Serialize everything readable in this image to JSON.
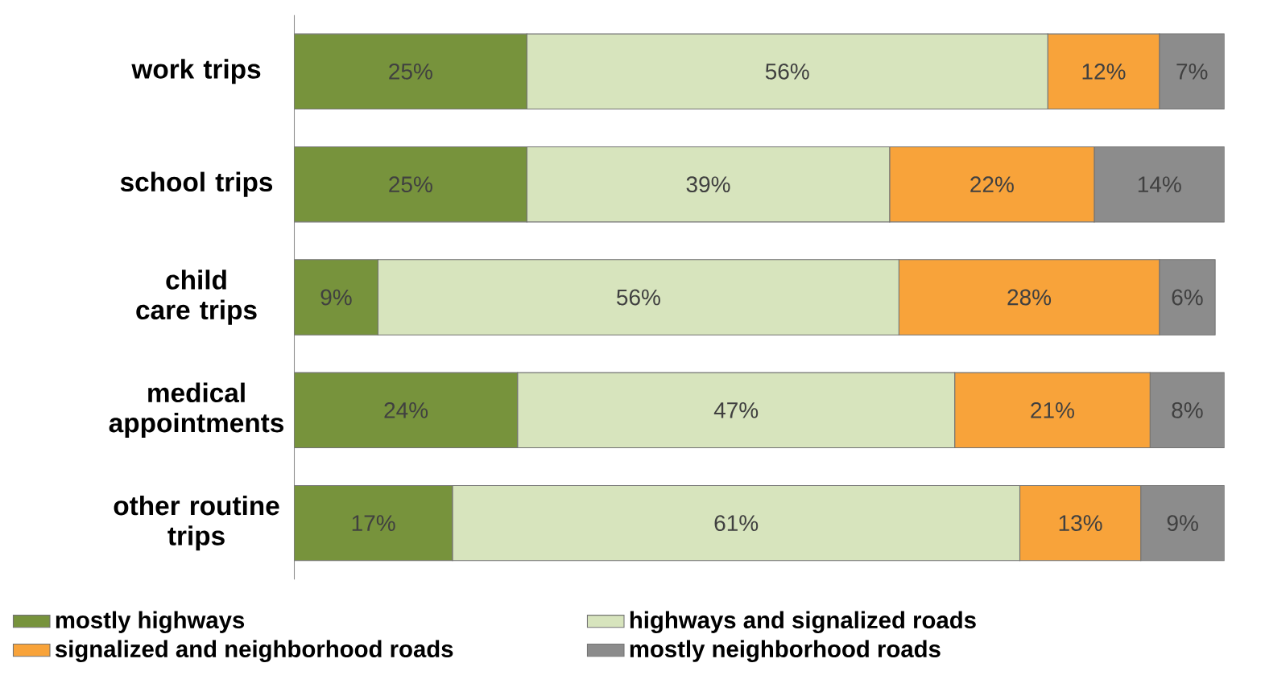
{
  "chart_data": {
    "type": "bar",
    "orientation": "horizontal",
    "stacked": true,
    "legend": "bottom",
    "categories": [
      "work trips",
      "school trips",
      "child care trips",
      "medical appointments",
      "other routine trips"
    ],
    "series": [
      {
        "name": "mostly highways",
        "color": "#77933c",
        "values": [
          25,
          25,
          9,
          24,
          17
        ],
        "value_labels": [
          "25%",
          "25%",
          "9%",
          "24%",
          "17%"
        ]
      },
      {
        "name": "highways and signalized roads",
        "color": "#d7e4bd",
        "values": [
          56,
          39,
          56,
          47,
          61
        ],
        "value_labels": [
          "56%",
          "39%",
          "56%",
          "47%",
          "61%"
        ]
      },
      {
        "name": "signalized and neighborhood roads",
        "color": "#f8a33a",
        "values": [
          12,
          22,
          28,
          21,
          13
        ],
        "value_labels": [
          "12%",
          "22%",
          "28%",
          "21%",
          "13%"
        ]
      },
      {
        "name": "mostly neighborhood roads",
        "color": "#8c8c8c",
        "values": [
          7,
          14,
          6,
          8,
          9
        ],
        "value_labels": [
          "7%",
          "14%",
          "6%",
          "8%",
          "9%"
        ]
      }
    ]
  }
}
